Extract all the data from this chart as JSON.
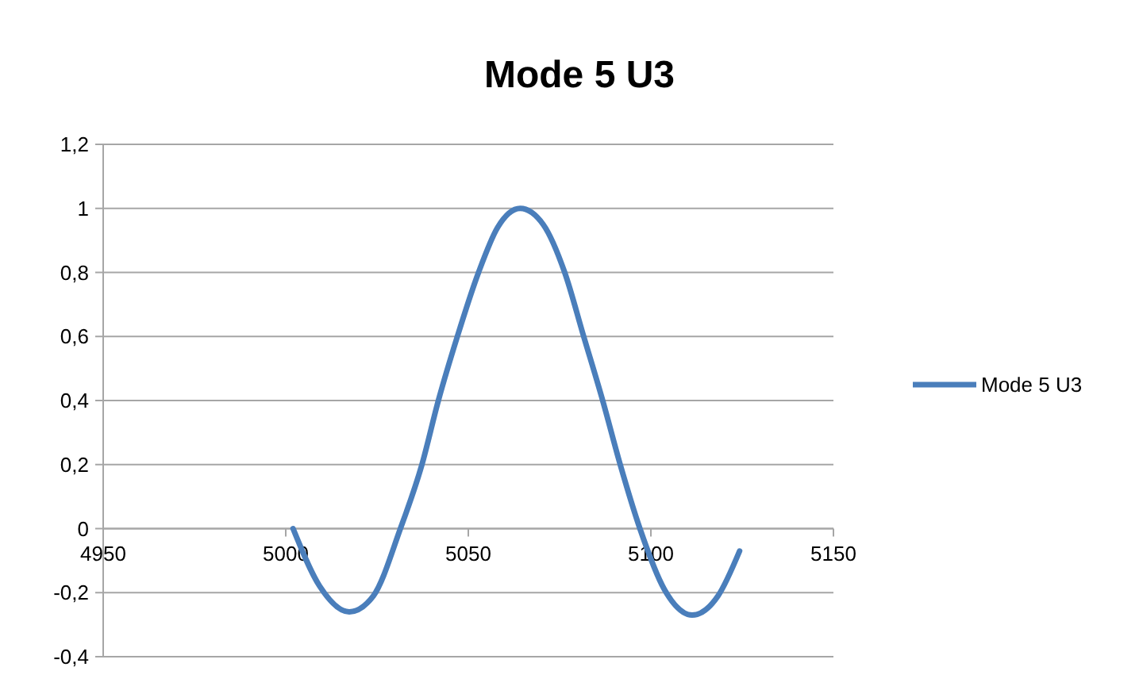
{
  "chart_data": {
    "type": "line",
    "title": "Mode 5 U3",
    "x": [
      5002,
      5009.3,
      5017.4,
      5024,
      5031.4,
      5037.3,
      5041.8,
      5047,
      5052.8,
      5058,
      5064.2,
      5070.5,
      5076.4,
      5081.6,
      5086.8,
      5091.6,
      5097,
      5103.7,
      5111.3,
      5118.4,
      5124.3
    ],
    "series": [
      {
        "name": "Mode 5 U3",
        "color": "#4a7ebb",
        "values": [
          0,
          -0.18,
          -0.26,
          -0.21,
          0,
          0.2,
          0.4,
          0.6,
          0.8,
          0.94,
          1,
          0.95,
          0.8,
          0.6,
          0.4,
          0.2,
          0,
          -0.19,
          -0.27,
          -0.21,
          -0.07
        ]
      }
    ],
    "xlim": [
      4950,
      5150
    ],
    "xticks": [
      4950,
      5000,
      5050,
      5100,
      5150
    ],
    "ylim": [
      -0.4,
      1.2
    ],
    "yticks": [
      {
        "value": -0.4,
        "label": "-0,4"
      },
      {
        "value": -0.2,
        "label": "-0,2"
      },
      0,
      {
        "value": 0.2,
        "label": "0,2"
      },
      {
        "value": 0.4,
        "label": "0,4"
      },
      {
        "value": 0.6,
        "label": "0,6"
      },
      {
        "value": 0.8,
        "label": "0,8"
      },
      1,
      {
        "value": 1.2,
        "label": "1,2"
      }
    ],
    "grid": "y",
    "legend": "right",
    "marker": "none",
    "line_style": "solid"
  }
}
